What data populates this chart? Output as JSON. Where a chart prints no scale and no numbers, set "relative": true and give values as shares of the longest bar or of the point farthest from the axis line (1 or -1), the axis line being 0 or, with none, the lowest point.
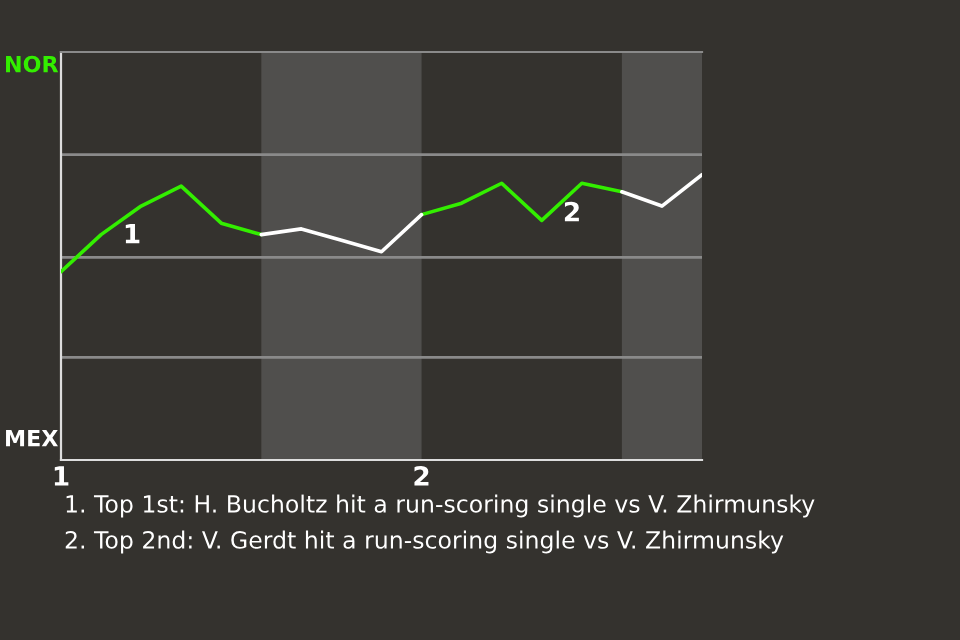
{
  "chart_data": {
    "type": "line",
    "relative": true,
    "categories": [
      "1",
      null,
      null,
      null,
      null,
      null,
      null,
      null,
      null,
      "2",
      null,
      null,
      null,
      null,
      null,
      null,
      null
    ],
    "series": [
      {
        "color": "#33ee00",
        "values": [
          0.66,
          0.79,
          0.89,
          0.96,
          0.83,
          0.79,
          null,
          null,
          null,
          0.86,
          0.9,
          0.97,
          0.84,
          0.97,
          0.94,
          null,
          null
        ]
      },
      {
        "color": "#ffffff",
        "values": [
          null,
          null,
          null,
          null,
          null,
          0.79,
          0.81,
          0.77,
          0.73,
          0.86,
          null,
          null,
          null,
          null,
          0.94,
          0.89,
          1
        ]
      }
    ],
    "ref_lines": [
      {
        "axis": "y",
        "value": 0.36,
        "color": "#8a8a8a"
      },
      {
        "axis": "y",
        "value": 0.71,
        "color": "#8a8a8a"
      },
      {
        "axis": "y",
        "value": 1.07,
        "color": "#8a8a8a"
      }
    ],
    "annotations": [
      "1",
      "2",
      "NOR",
      "MEX",
      "1. Top 1st: H. Bucholtz hit a run-scoring single vs V. Zhirmunsky",
      "2. Top 2nd: V. Gerdt hit a run-scoring single vs V. Zhirmunsky"
    ]
  }
}
